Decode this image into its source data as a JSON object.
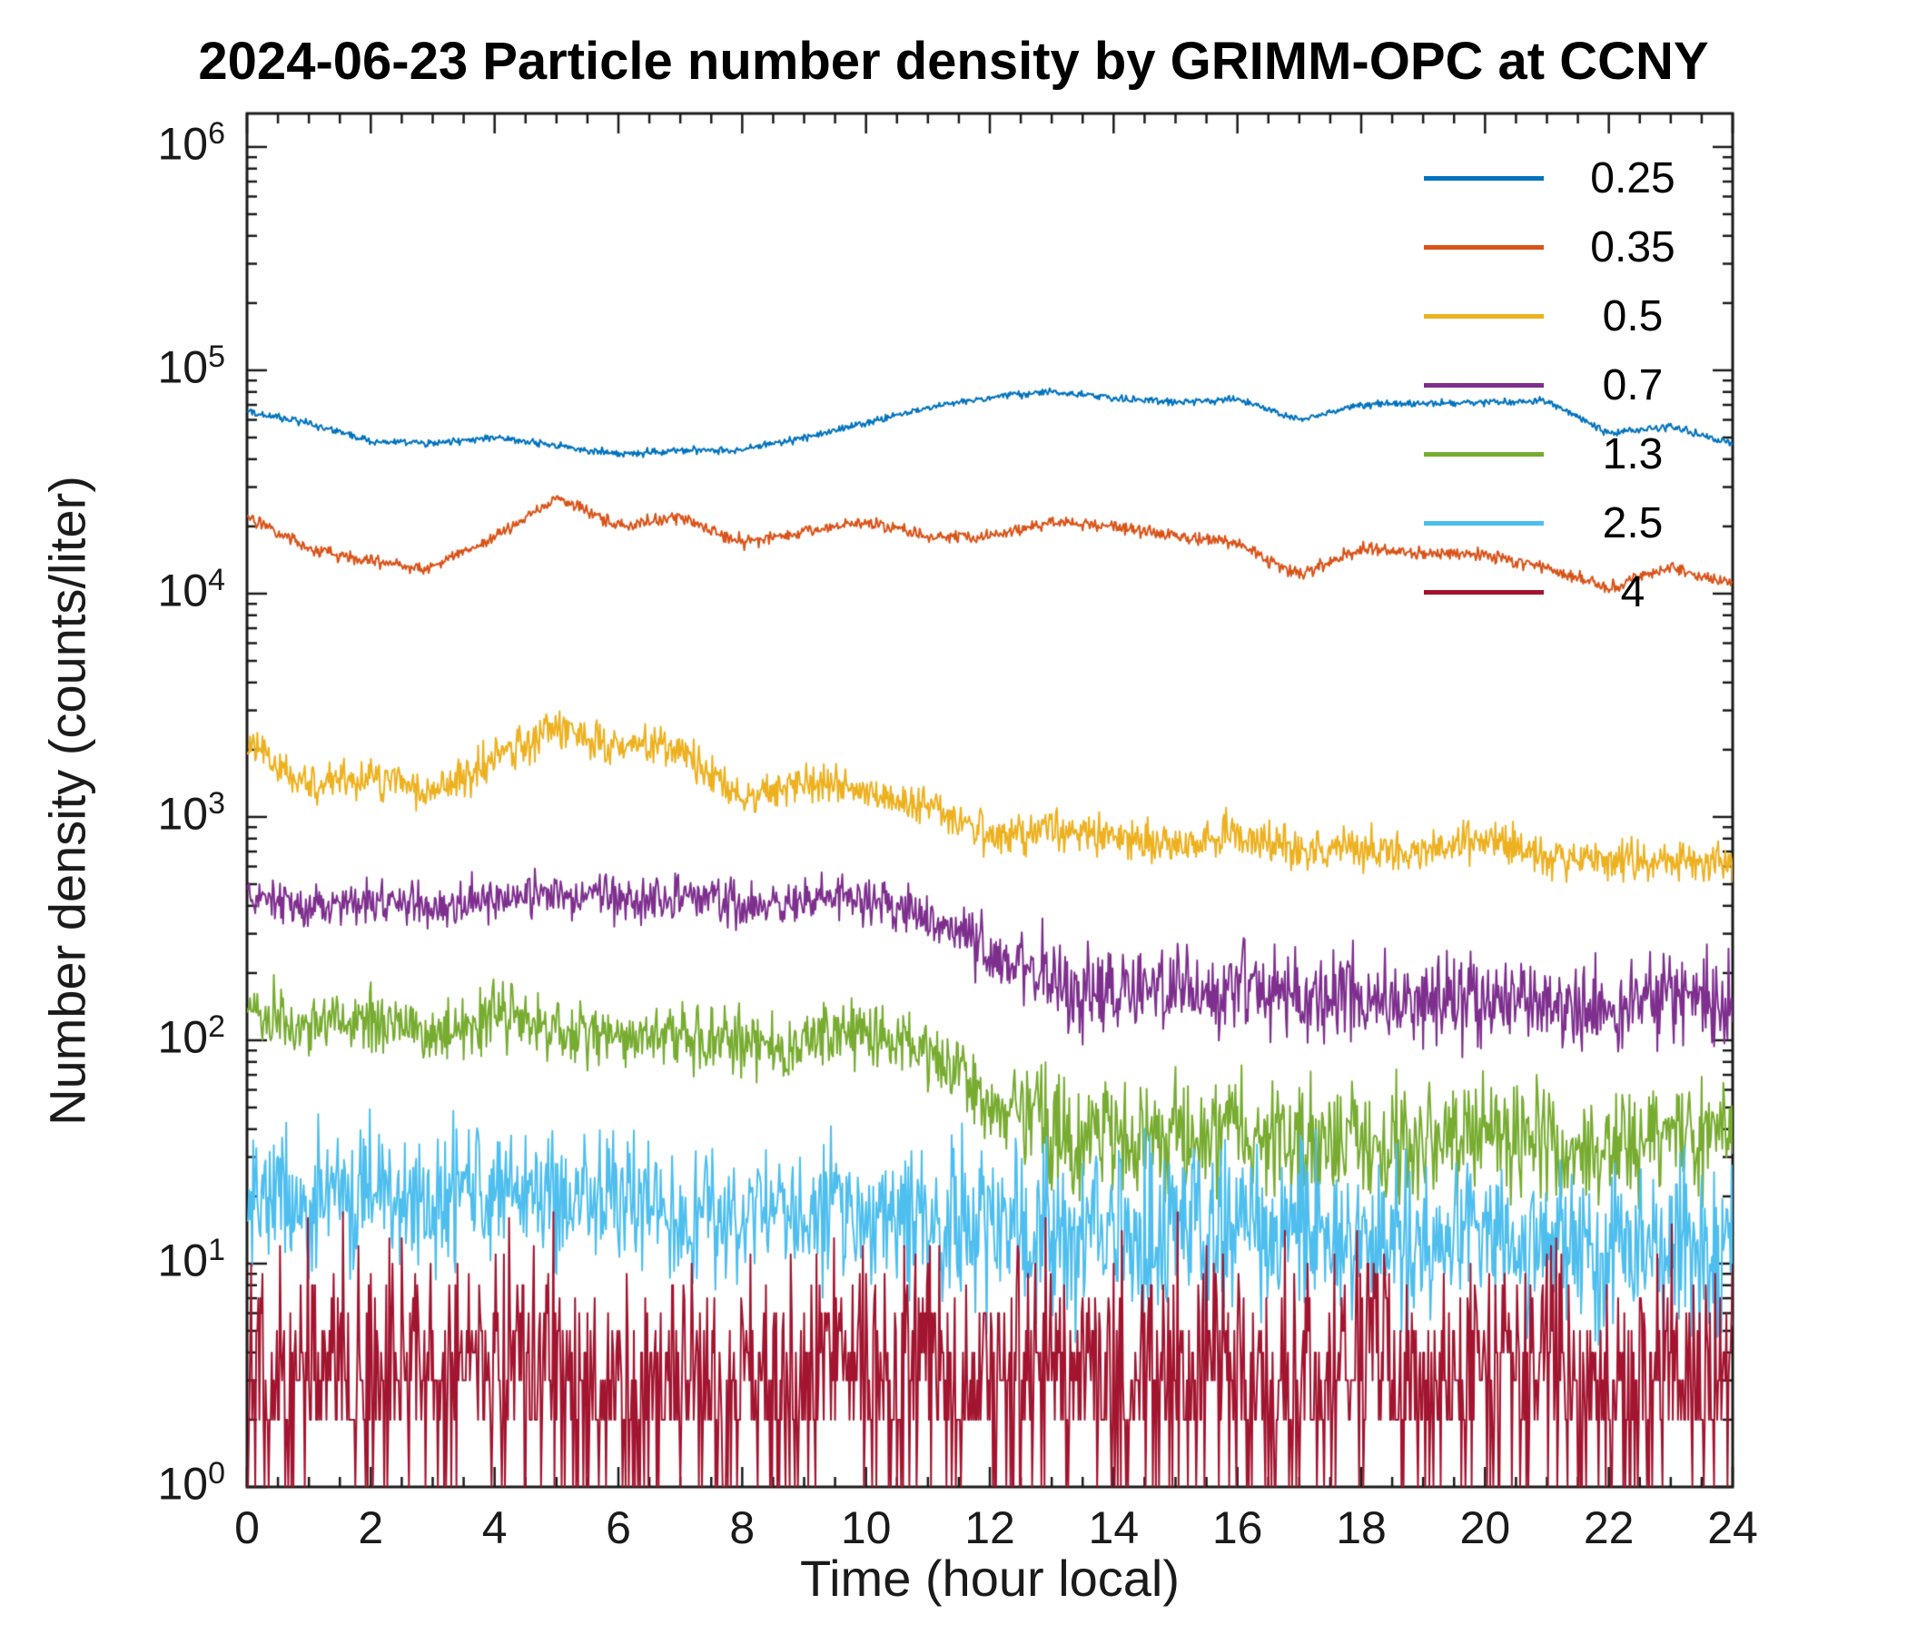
{
  "chart_data": {
    "type": "line",
    "title": "2024-06-23 Particle number density by GRIMM-OPC at CCNY",
    "xlabel": "Time (hour local)",
    "ylabel": "Number density (counts/liter)",
    "xlim": [
      0,
      24
    ],
    "xticks": [
      0,
      2,
      4,
      6,
      8,
      10,
      12,
      14,
      16,
      18,
      20,
      22,
      24
    ],
    "x_minor_step": 0.5,
    "y_scale": "log",
    "ylim_log10": [
      0,
      6.15
    ],
    "ytick_exponents": [
      0,
      1,
      2,
      3,
      4,
      5,
      6
    ],
    "grid": false,
    "legend_position": "top-right-inside",
    "axis_color": "#1a1a1a",
    "anchors_hours": [
      0,
      1,
      2,
      3,
      4,
      5,
      6,
      7,
      8,
      9,
      10,
      11,
      12,
      13,
      14,
      15,
      16,
      17,
      18,
      19,
      20,
      21,
      22,
      23,
      24
    ],
    "series": [
      {
        "name": "0.25",
        "color": "#0072BD",
        "noise_early": 0.016,
        "noise_late": 0.016,
        "late_start": 24,
        "round_min1": false,
        "values": [
          65000,
          58000,
          48000,
          47000,
          50000,
          46000,
          42000,
          44000,
          44000,
          50000,
          58000,
          68000,
          76000,
          80000,
          75000,
          72000,
          74000,
          60000,
          70000,
          71000,
          72000,
          73000,
          52000,
          56000,
          47000
        ]
      },
      {
        "name": "0.35",
        "color": "#D95319",
        "noise_early": 0.028,
        "noise_late": 0.028,
        "late_start": 24,
        "round_min1": false,
        "values": [
          22000,
          16000,
          14000,
          13000,
          18000,
          27000,
          20000,
          22000,
          17000,
          19000,
          21000,
          18000,
          18000,
          21000,
          20000,
          18000,
          17000,
          12000,
          16000,
          15000,
          15000,
          13000,
          10500,
          13000,
          11000
        ]
      },
      {
        "name": "0.5",
        "color": "#EDB120",
        "noise_early": 0.09,
        "noise_late": 0.09,
        "late_start": 24,
        "round_min1": false,
        "values": [
          2100,
          1400,
          1500,
          1300,
          1800,
          2500,
          2100,
          2000,
          1200,
          1450,
          1300,
          1100,
          830,
          900,
          800,
          760,
          850,
          700,
          730,
          700,
          800,
          680,
          650,
          640,
          620
        ]
      },
      {
        "name": "0.7",
        "color": "#7E2F8E",
        "noise_early": 0.1,
        "noise_late": 0.2,
        "late_start": 11,
        "round_min1": false,
        "values": [
          450,
          390,
          430,
          400,
          430,
          470,
          420,
          450,
          400,
          430,
          440,
          350,
          240,
          185,
          155,
          165,
          170,
          150,
          160,
          150,
          158,
          150,
          145,
          152,
          148
        ]
      },
      {
        "name": "1.3",
        "color": "#77AC30",
        "noise_early": 0.14,
        "noise_late": 0.26,
        "late_start": 11,
        "round_min1": false,
        "values": [
          135,
          115,
          125,
          100,
          130,
          110,
          100,
          108,
          95,
          100,
          112,
          85,
          55,
          40,
          36,
          34,
          40,
          34,
          38,
          32,
          40,
          36,
          33,
          36,
          38
        ]
      },
      {
        "name": "2.5",
        "color": "#4DBEEE",
        "noise_early": 0.3,
        "noise_late": 0.38,
        "late_start": 10,
        "round_min1": false,
        "values": [
          23,
          20,
          22,
          18,
          22,
          20,
          18,
          17,
          16,
          17,
          18,
          16,
          15,
          14,
          15,
          14,
          15,
          13,
          14,
          12,
          13,
          12,
          11,
          11,
          12
        ]
      },
      {
        "name": "4",
        "color": "#A2142F",
        "noise_early": 0.55,
        "noise_late": 0.55,
        "late_start": 24,
        "round_min1": true,
        "values": [
          3,
          3.5,
          4,
          3,
          3.5,
          3,
          2.5,
          3,
          2.5,
          3,
          3.5,
          3,
          3,
          3.5,
          3,
          3,
          3.5,
          3,
          3.5,
          3,
          3,
          3.5,
          3,
          3,
          3
        ]
      }
    ]
  }
}
